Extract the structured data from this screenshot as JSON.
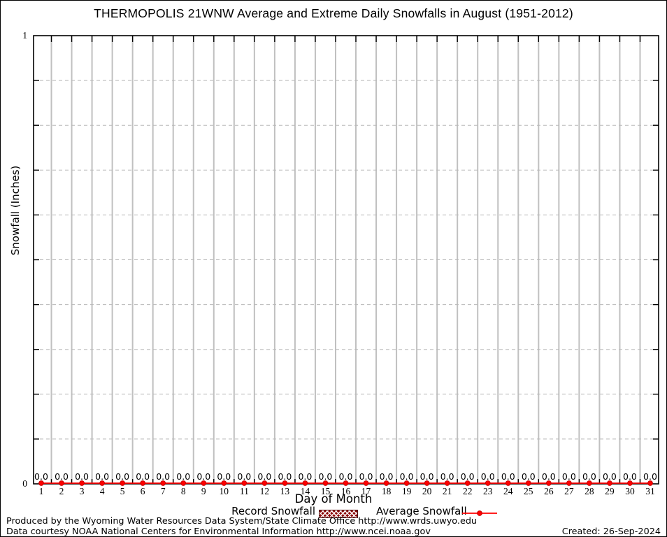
{
  "title": "THERMOPOLIS 21WNW Average and Extreme Daily Snowfalls in August (1951-2012)",
  "y_axis": {
    "label": "Snowfall (Inches)",
    "top_tick": "1",
    "bottom_tick": "0"
  },
  "x_axis": {
    "label": "Day of Month"
  },
  "legend": {
    "record_label": "Record Snowfall",
    "average_label": "Average Snowfall"
  },
  "footer": {
    "line1": "Produced by the Wyoming Water Resources Data System/State Climate Office http://www.wrds.uwyo.edu",
    "line2": "Data courtesy NOAA National Centers for Environmental Information http://www.ncei.noaa.gov",
    "created": "Created: 26-Sep-2024"
  },
  "colors": {
    "average_red": "#ff0000",
    "marker_edge_red": "#c40000",
    "record_dark_red": "#8b0000",
    "grid_gray": "#c0c0c0",
    "dashed_grid_gray": "#b8b8b8",
    "frame_black": "#000000"
  },
  "chart_data": {
    "type": "line",
    "title": "THERMOPOLIS 21WNW Average and Extreme Daily Snowfalls in August (1951-2012)",
    "xlabel": "Day of Month",
    "ylabel": "Snowfall (Inches)",
    "xlim": [
      0.6,
      31.5
    ],
    "ylim": [
      0,
      1
    ],
    "ytick_labeled": [
      {
        "value": 0,
        "label": "0"
      },
      {
        "value": 1,
        "label": "1"
      }
    ],
    "ytick_minor_interval": 0.1,
    "grid": {
      "horizontal": "dashed every 0.1",
      "vertical": "solid at day boundaries 1.5 to 30.5"
    },
    "legend_position": "below x-axis label",
    "x": [
      1,
      2,
      3,
      4,
      5,
      6,
      7,
      8,
      9,
      10,
      11,
      12,
      13,
      14,
      15,
      16,
      17,
      18,
      19,
      20,
      21,
      22,
      23,
      24,
      25,
      26,
      27,
      28,
      29,
      30,
      31
    ],
    "series": [
      {
        "name": "Record Snowfall",
        "style": "hatched-box",
        "color": "#8b0000",
        "values": [
          0,
          0,
          0,
          0,
          0,
          0,
          0,
          0,
          0,
          0,
          0,
          0,
          0,
          0,
          0,
          0,
          0,
          0,
          0,
          0,
          0,
          0,
          0,
          0,
          0,
          0,
          0,
          0,
          0,
          0,
          0
        ]
      },
      {
        "name": "Average Snowfall",
        "style": "line-point",
        "color": "#ff0000",
        "values": [
          0,
          0,
          0,
          0,
          0,
          0,
          0,
          0,
          0,
          0,
          0,
          0,
          0,
          0,
          0,
          0,
          0,
          0,
          0,
          0,
          0,
          0,
          0,
          0,
          0,
          0,
          0,
          0,
          0,
          0,
          0
        ]
      }
    ],
    "point_labels": [
      "0.0",
      "0.0",
      "0.0",
      "0.0",
      "0.0",
      "0.0",
      "0.0",
      "0.0",
      "0.0",
      "0.0",
      "0.0",
      "0.0",
      "0.0",
      "0.0",
      "0.0",
      "0.0",
      "0.0",
      "0.0",
      "0.0",
      "0.0",
      "0.0",
      "0.0",
      "0.0",
      "0.0",
      "0.0",
      "0.0",
      "0.0",
      "0.0",
      "0.0",
      "0.0",
      "0.0"
    ]
  }
}
